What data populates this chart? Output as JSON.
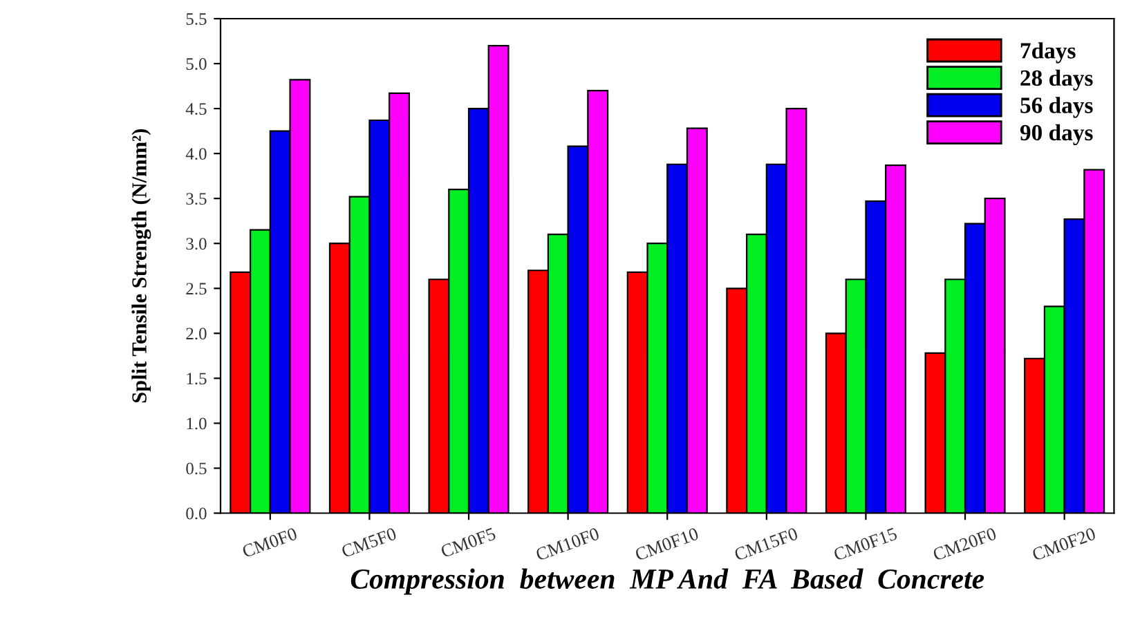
{
  "chart_data": {
    "type": "bar",
    "xlabel": "Compression  between  MP And  FA  Based  Concrete",
    "ylabel": "Split Tensile Strength (N/mm²)",
    "categories": [
      "CM0F0",
      "CM5F0",
      "CM0F5",
      "CM10F0",
      "CM0F10",
      "CM15F0",
      "CM0F15",
      "CM20F0",
      "CM0F20"
    ],
    "series": [
      {
        "name": "7days",
        "color": "#ff0000",
        "values": [
          2.68,
          3.0,
          2.6,
          2.7,
          2.68,
          2.5,
          2.0,
          1.78,
          1.72
        ]
      },
      {
        "name": "28 days",
        "color": "#00ee22",
        "values": [
          3.15,
          3.52,
          3.6,
          3.1,
          3.0,
          3.1,
          2.6,
          2.6,
          2.3
        ]
      },
      {
        "name": "56 days",
        "color": "#0000ee",
        "values": [
          4.25,
          4.37,
          4.5,
          4.08,
          3.88,
          3.88,
          3.47,
          3.22,
          3.27
        ]
      },
      {
        "name": "90 days",
        "color": "#ff00ff",
        "values": [
          4.82,
          4.67,
          5.2,
          4.7,
          4.28,
          4.5,
          3.87,
          3.5,
          3.82
        ]
      }
    ],
    "ylim": [
      0,
      5.5
    ],
    "yticks": [
      {
        "value": 0,
        "label": "0.0"
      },
      {
        "value": 0.5,
        "label": "0.5"
      },
      {
        "value": 1,
        "label": "1.0"
      },
      {
        "value": 1.5,
        "label": "1.5"
      },
      {
        "value": 2,
        "label": "2.0"
      },
      {
        "value": 2.5,
        "label": "2.5"
      },
      {
        "value": 3,
        "label": "3.0"
      },
      {
        "value": 3.5,
        "label": "3.5"
      },
      {
        "value": 4,
        "label": "4.0"
      },
      {
        "value": 4.5,
        "label": "4.5"
      },
      {
        "value": 5,
        "label": "5.0"
      },
      {
        "value": 5.5,
        "label": "5.5"
      }
    ],
    "grid": false,
    "legend": "top right"
  }
}
